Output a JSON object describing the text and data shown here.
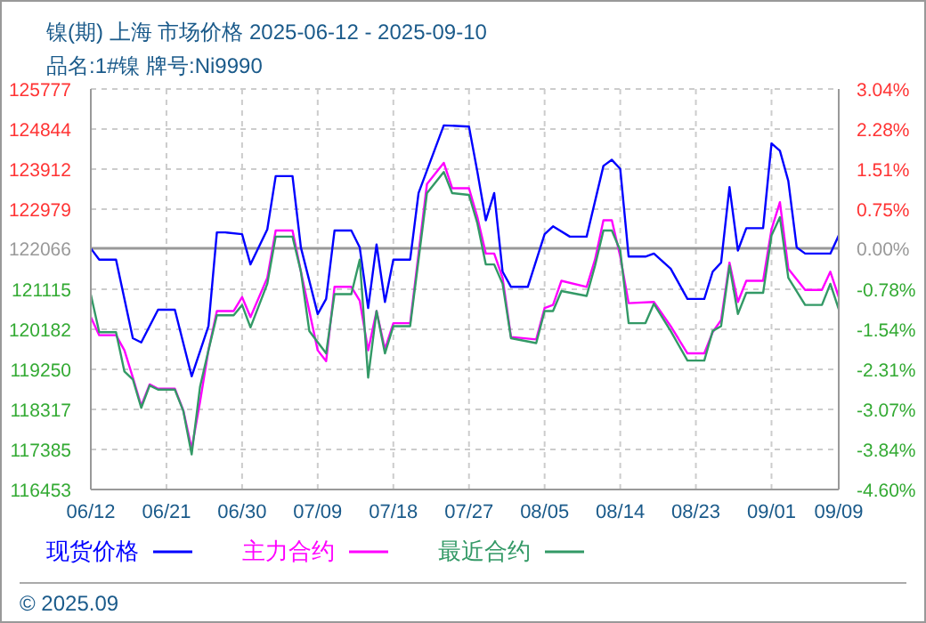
{
  "chart_data": {
    "type": "line",
    "title": "镍(期) 上海 市场价格 2025-06-12 - 2025-09-10",
    "subtitle": "品名:1#镍 牌号:Ni9990",
    "annotations": [
      "© 2025.09"
    ],
    "xlim": [
      "2025-06-12",
      "2025-09-09"
    ],
    "xticks": [
      {
        "value": "2025-06-12",
        "label": "06/12"
      },
      {
        "value": "2025-06-21",
        "label": "06/21"
      },
      {
        "value": "2025-06-30",
        "label": "06/30"
      },
      {
        "value": "2025-07-09",
        "label": "07/09"
      },
      {
        "value": "2025-07-18",
        "label": "07/18"
      },
      {
        "value": "2025-07-27",
        "label": "07/27"
      },
      {
        "value": "2025-08-05",
        "label": "08/05"
      },
      {
        "value": "2025-08-14",
        "label": "08/14"
      },
      {
        "value": "2025-08-23",
        "label": "08/23"
      },
      {
        "value": "2025-09-01",
        "label": "09/01"
      },
      {
        "value": "2025-09-09",
        "label": "09/09"
      }
    ],
    "ylim": [
      116453,
      125777
    ],
    "yticks": [
      116453,
      117385,
      118317,
      119250,
      120182,
      121115,
      122066,
      122979,
      123912,
      124844,
      125777
    ],
    "y2lim": [
      -4.6,
      3.04
    ],
    "y2ticks": [
      {
        "value": -4.6,
        "label": "-4.60%"
      },
      {
        "value": -3.84,
        "label": "-3.84%"
      },
      {
        "value": -3.07,
        "label": "-3.07%"
      },
      {
        "value": -2.31,
        "label": "-2.31%"
      },
      {
        "value": -1.54,
        "label": "-1.54%"
      },
      {
        "value": -0.78,
        "label": "-0.78%"
      },
      {
        "value": 0,
        "label": "0.00%"
      },
      {
        "value": 0.75,
        "label": "0.75%"
      },
      {
        "value": 1.51,
        "label": "1.51%"
      },
      {
        "value": 2.28,
        "label": "2.28%"
      },
      {
        "value": 3.04,
        "label": "3.04%"
      }
    ],
    "ref_lines": [
      {
        "axis": "y",
        "value": 122066,
        "color": "#999999",
        "line_style": "solid"
      }
    ],
    "grid": true,
    "legend": "bottom",
    "marker": "none",
    "line_style": "solid",
    "series": [
      {
        "name": "现货价格",
        "color": "#0000ff",
        "x": [
          "2025-06-12",
          "2025-06-13",
          "2025-06-15",
          "2025-06-17",
          "2025-06-18",
          "2025-06-20",
          "2025-06-22",
          "2025-06-24",
          "2025-06-26",
          "2025-06-27",
          "2025-06-28",
          "2025-06-30",
          "2025-07-01",
          "2025-07-03",
          "2025-07-04",
          "2025-07-06",
          "2025-07-07",
          "2025-07-09",
          "2025-07-10",
          "2025-07-11",
          "2025-07-13",
          "2025-07-14",
          "2025-07-15",
          "2025-07-16",
          "2025-07-17",
          "2025-07-18",
          "2025-07-20",
          "2025-07-21",
          "2025-07-24",
          "2025-07-27",
          "2025-07-28",
          "2025-07-29",
          "2025-07-30",
          "2025-07-31",
          "2025-08-01",
          "2025-08-03",
          "2025-08-05",
          "2025-08-06",
          "2025-08-08",
          "2025-08-10",
          "2025-08-12",
          "2025-08-13",
          "2025-08-14",
          "2025-08-15",
          "2025-08-17",
          "2025-08-18",
          "2025-08-20",
          "2025-08-22",
          "2025-08-24",
          "2025-08-25",
          "2025-08-26",
          "2025-08-27",
          "2025-08-28",
          "2025-08-29",
          "2025-08-31",
          "2025-09-01",
          "2025-09-02",
          "2025-09-03",
          "2025-09-04",
          "2025-09-05",
          "2025-09-08",
          "2025-09-09"
        ],
        "values": [
          122066,
          121805,
          121805,
          119975,
          119876,
          120637,
          120637,
          119088,
          120256,
          122439,
          122439,
          122396,
          121693,
          122509,
          123748,
          123748,
          122087,
          120538,
          120890,
          122481,
          122481,
          122087,
          120679,
          122157,
          120820,
          121805,
          121805,
          123354,
          124931,
          124903,
          123847,
          122720,
          123354,
          121524,
          121171,
          121171,
          122396,
          122580,
          122340,
          122340,
          123987,
          124128,
          123917,
          121876,
          121876,
          121946,
          121594,
          120890,
          120890,
          121524,
          121735,
          123495,
          122016,
          122537,
          122537,
          124509,
          124339,
          123636,
          122087,
          121946,
          121946,
          122368
        ]
      },
      {
        "name": "主力合约",
        "color": "#ff00ff",
        "x": [
          "2025-06-12",
          "2025-06-13",
          "2025-06-15",
          "2025-06-16",
          "2025-06-17",
          "2025-06-18",
          "2025-06-19",
          "2025-06-20",
          "2025-06-22",
          "2025-06-23",
          "2025-06-24",
          "2025-06-25",
          "2025-06-26",
          "2025-06-27",
          "2025-06-29",
          "2025-06-30",
          "2025-07-01",
          "2025-07-03",
          "2025-07-04",
          "2025-07-06",
          "2025-07-07",
          "2025-07-09",
          "2025-07-10",
          "2025-07-11",
          "2025-07-13",
          "2025-07-14",
          "2025-07-15",
          "2025-07-16",
          "2025-07-17",
          "2025-07-18",
          "2025-07-20",
          "2025-07-22",
          "2025-07-24",
          "2025-07-25",
          "2025-07-27",
          "2025-07-28",
          "2025-07-29",
          "2025-07-30",
          "2025-07-31",
          "2025-08-01",
          "2025-08-04",
          "2025-08-05",
          "2025-08-06",
          "2025-08-07",
          "2025-08-10",
          "2025-08-11",
          "2025-08-12",
          "2025-08-13",
          "2025-08-14",
          "2025-08-15",
          "2025-08-18",
          "2025-08-20",
          "2025-08-22",
          "2025-08-24",
          "2025-08-25",
          "2025-08-26",
          "2025-08-27",
          "2025-08-28",
          "2025-08-29",
          "2025-08-31",
          "2025-09-01",
          "2025-09-02",
          "2025-09-03",
          "2025-09-05",
          "2025-09-07",
          "2025-09-08",
          "2025-09-09"
        ],
        "values": [
          120467,
          120045,
          120045,
          119693,
          119059,
          118400,
          118900,
          118800,
          118800,
          118300,
          117400,
          118500,
          119700,
          120608,
          120608,
          120932,
          120467,
          121382,
          122481,
          122481,
          121524,
          119693,
          119440,
          121171,
          121171,
          120848,
          119693,
          120608,
          119721,
          120326,
          120326,
          123565,
          124058,
          123467,
          123467,
          122791,
          121946,
          121946,
          121383,
          120003,
          119946,
          120679,
          120749,
          121312,
          121171,
          121805,
          122720,
          122720,
          121876,
          120791,
          120820,
          120256,
          119622,
          119622,
          120115,
          120397,
          121735,
          120820,
          121312,
          121312,
          122509,
          123143,
          121594,
          121101,
          121101,
          121524,
          120932
        ]
      },
      {
        "name": "最近合约",
        "color": "#339966",
        "x": [
          "2025-06-12",
          "2025-06-13",
          "2025-06-15",
          "2025-06-16",
          "2025-06-17",
          "2025-06-18",
          "2025-06-19",
          "2025-06-20",
          "2025-06-22",
          "2025-06-23",
          "2025-06-24",
          "2025-06-25",
          "2025-06-26",
          "2025-06-27",
          "2025-06-29",
          "2025-06-30",
          "2025-07-01",
          "2025-07-03",
          "2025-07-04",
          "2025-07-06",
          "2025-07-07",
          "2025-07-08",
          "2025-07-10",
          "2025-07-11",
          "2025-07-13",
          "2025-07-14",
          "2025-07-15",
          "2025-07-16",
          "2025-07-17",
          "2025-07-18",
          "2025-07-20",
          "2025-07-22",
          "2025-07-24",
          "2025-07-25",
          "2025-07-27",
          "2025-07-28",
          "2025-07-29",
          "2025-07-30",
          "2025-07-31",
          "2025-08-01",
          "2025-08-04",
          "2025-08-05",
          "2025-08-06",
          "2025-08-07",
          "2025-08-10",
          "2025-08-11",
          "2025-08-12",
          "2025-08-13",
          "2025-08-14",
          "2025-08-15",
          "2025-08-17",
          "2025-08-18",
          "2025-08-20",
          "2025-08-22",
          "2025-08-24",
          "2025-08-25",
          "2025-08-26",
          "2025-08-27",
          "2025-08-28",
          "2025-08-29",
          "2025-08-31",
          "2025-09-01",
          "2025-09-02",
          "2025-09-03",
          "2025-09-05",
          "2025-09-07",
          "2025-09-08",
          "2025-09-09"
        ],
        "values": [
          120988,
          120115,
          120115,
          119200,
          119017,
          118355,
          118876,
          118778,
          118778,
          118285,
          117271,
          118848,
          119693,
          120510,
          120510,
          120749,
          120228,
          121242,
          122340,
          122340,
          121524,
          120143,
          119622,
          121002,
          121002,
          121805,
          119059,
          120608,
          119622,
          120256,
          120256,
          123354,
          123847,
          123354,
          123312,
          122650,
          121693,
          121693,
          121242,
          119975,
          119862,
          120608,
          120608,
          121073,
          120960,
          121664,
          122481,
          122481,
          122016,
          120326,
          120326,
          120777,
          120143,
          119454,
          119454,
          120143,
          120256,
          121664,
          120538,
          121031,
          121031,
          122368,
          122791,
          121383,
          120749,
          120749,
          121242,
          120651
        ]
      }
    ]
  }
}
